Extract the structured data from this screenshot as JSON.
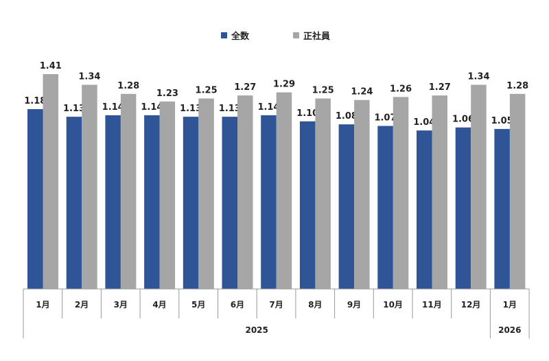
{
  "chart_data": {
    "type": "bar",
    "categories": [
      "1月",
      "2月",
      "3月",
      "4月",
      "5月",
      "6月",
      "7月",
      "8月",
      "9月",
      "10月",
      "11月",
      "12月",
      "1月"
    ],
    "groups": [
      {
        "label": "2025",
        "count": 12
      },
      {
        "label": "2026",
        "count": 1
      }
    ],
    "series": [
      {
        "name": "全数",
        "color": "#2f5597",
        "values": [
          1.18,
          1.13,
          1.14,
          1.14,
          1.13,
          1.13,
          1.14,
          1.1,
          1.08,
          1.07,
          1.04,
          1.06,
          1.05
        ],
        "labels": [
          "1.18",
          "1.13",
          "1.14",
          "1.14",
          "1.13",
          "1.13",
          "1.14",
          "1.10",
          "1.08",
          "1.07",
          "1.04",
          "1.06",
          "1.05"
        ]
      },
      {
        "name": "正社員",
        "color": "#a6a6a6",
        "values": [
          1.41,
          1.34,
          1.28,
          1.23,
          1.25,
          1.27,
          1.29,
          1.25,
          1.24,
          1.26,
          1.27,
          1.34,
          1.28
        ],
        "labels": [
          "1.41",
          "1.34",
          "1.28",
          "1.23",
          "1.25",
          "1.27",
          "1.29",
          "1.25",
          "1.24",
          "1.26",
          "1.27",
          "1.34",
          "1.28"
        ]
      }
    ],
    "title": "",
    "xlabel": "",
    "ylabel": "",
    "ylim": [
      0,
      1.6
    ],
    "grid": false,
    "legend_position": "top-center"
  }
}
